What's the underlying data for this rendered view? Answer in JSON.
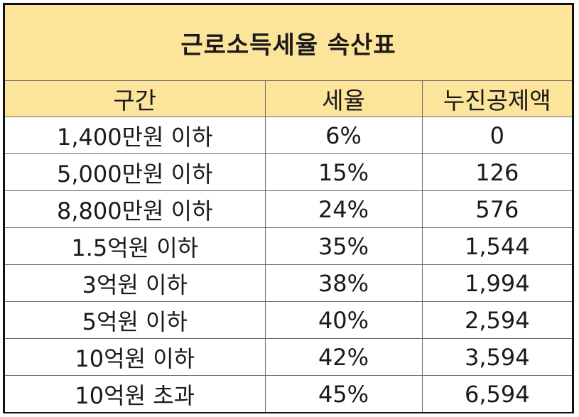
{
  "title": "근로소득세율 속산표",
  "headers": {
    "range": "구간",
    "rate": "세율",
    "deduction": "누진공제액"
  },
  "rows": [
    {
      "range": "1,400만원 이하",
      "rate": "6%",
      "deduction": "0"
    },
    {
      "range": "5,000만원 이하",
      "rate": "15%",
      "deduction": "126"
    },
    {
      "range": "8,800만원 이하",
      "rate": "24%",
      "deduction": "576"
    },
    {
      "range": "1.5억원 이하",
      "rate": "35%",
      "deduction": "1,544"
    },
    {
      "range": "3억원 이하",
      "rate": "38%",
      "deduction": "1,994"
    },
    {
      "range": "5억원 이하",
      "rate": "40%",
      "deduction": "2,594"
    },
    {
      "range": "10억원 이하",
      "rate": "42%",
      "deduction": "3,594"
    },
    {
      "range": "10억원 초과",
      "rate": "45%",
      "deduction": "6,594"
    }
  ],
  "colors": {
    "header_fill": "#fde49b",
    "border": "#111111",
    "grid": "#6b6b6b",
    "text": "#1a1a1a"
  }
}
